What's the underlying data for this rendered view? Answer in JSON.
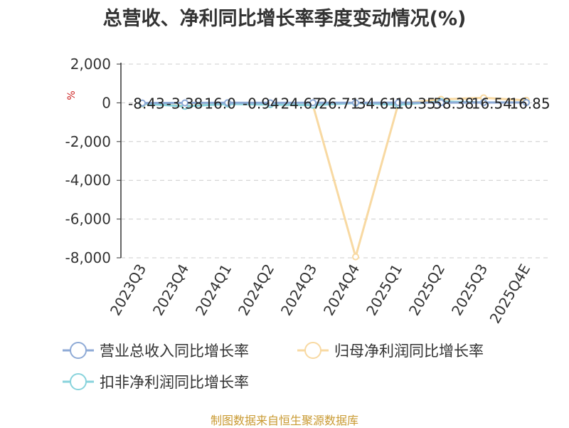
{
  "chart_data": {
    "type": "line",
    "title": "总营收、净利同比增长率季度变动情况(%)",
    "ylabel": "%",
    "categories": [
      "2023Q3",
      "2023Q4",
      "2024Q1",
      "2024Q2",
      "2024Q3",
      "2024Q4",
      "2025Q1",
      "2025Q2",
      "2025Q3",
      "2025Q4E"
    ],
    "ylim": [
      -8000,
      2000
    ],
    "yticks": [
      "2,000",
      "0",
      "-2,000",
      "-4,000",
      "-6,000",
      "-8,000"
    ],
    "ytick_values": [
      2000,
      0,
      -2000,
      -4000,
      -6000,
      -8000
    ],
    "grid": true,
    "legend_position": "bottom",
    "series": [
      {
        "name": "营业总收入同比增长率",
        "color": "#8eaad6",
        "values": [
          -8.4,
          -3.4,
          6.1,
          -0.9,
          7.1,
          4.6,
          10.4,
          8.4,
          16.5,
          16.9
        ]
      },
      {
        "name": "归母净利润同比增长率",
        "color": "#f8d9a2",
        "values": [
          -60,
          -150,
          -50,
          -90,
          -120,
          -7950,
          -50,
          180,
          260,
          130
        ]
      },
      {
        "name": "扣非净利润同比增长率",
        "color": "#88d3dc",
        "values": [
          -40,
          -180,
          -60,
          -90,
          -120,
          -10,
          -100,
          70,
          20,
          20
        ]
      }
    ],
    "data_labels": [
      "-8.43",
      "-3.38",
      "16.0",
      "-0.94",
      "24.67",
      "26.71",
      "34.61",
      "10.35",
      "58.38",
      "16.54",
      "16.85"
    ]
  },
  "source": "制图数据来自恒生聚源数据库"
}
